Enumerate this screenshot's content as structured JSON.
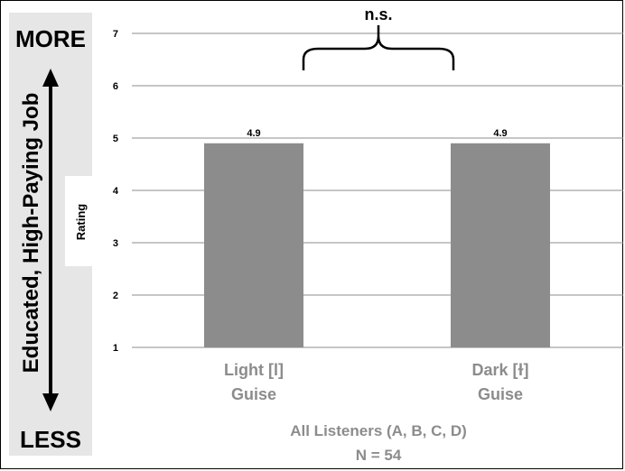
{
  "side_panel": {
    "top_label": "MORE",
    "bottom_label": "LESS",
    "vertical_label": "Educated, High-Paying Job"
  },
  "chart_data": {
    "type": "bar",
    "categories": [
      [
        "Light [l]",
        "Guise"
      ],
      [
        "Dark [ɫ]",
        "Guise"
      ]
    ],
    "values": [
      4.9,
      4.9
    ],
    "data_labels": [
      "4.9",
      "4.9"
    ],
    "ylim": [
      1,
      7
    ],
    "yticks": [
      "1",
      "2",
      "3",
      "4",
      "5",
      "6",
      "7"
    ],
    "ylabel": "Rating",
    "xlabel": [
      "All Listeners (A, B, C, D)",
      "N = 54"
    ],
    "annotation": "n.s.",
    "grid": true,
    "bar_color": "#8c8c8c",
    "grid_color": "#8c8c8c",
    "category_label_color": "#8c8c8c",
    "panel_color": "#e6e6e6"
  }
}
